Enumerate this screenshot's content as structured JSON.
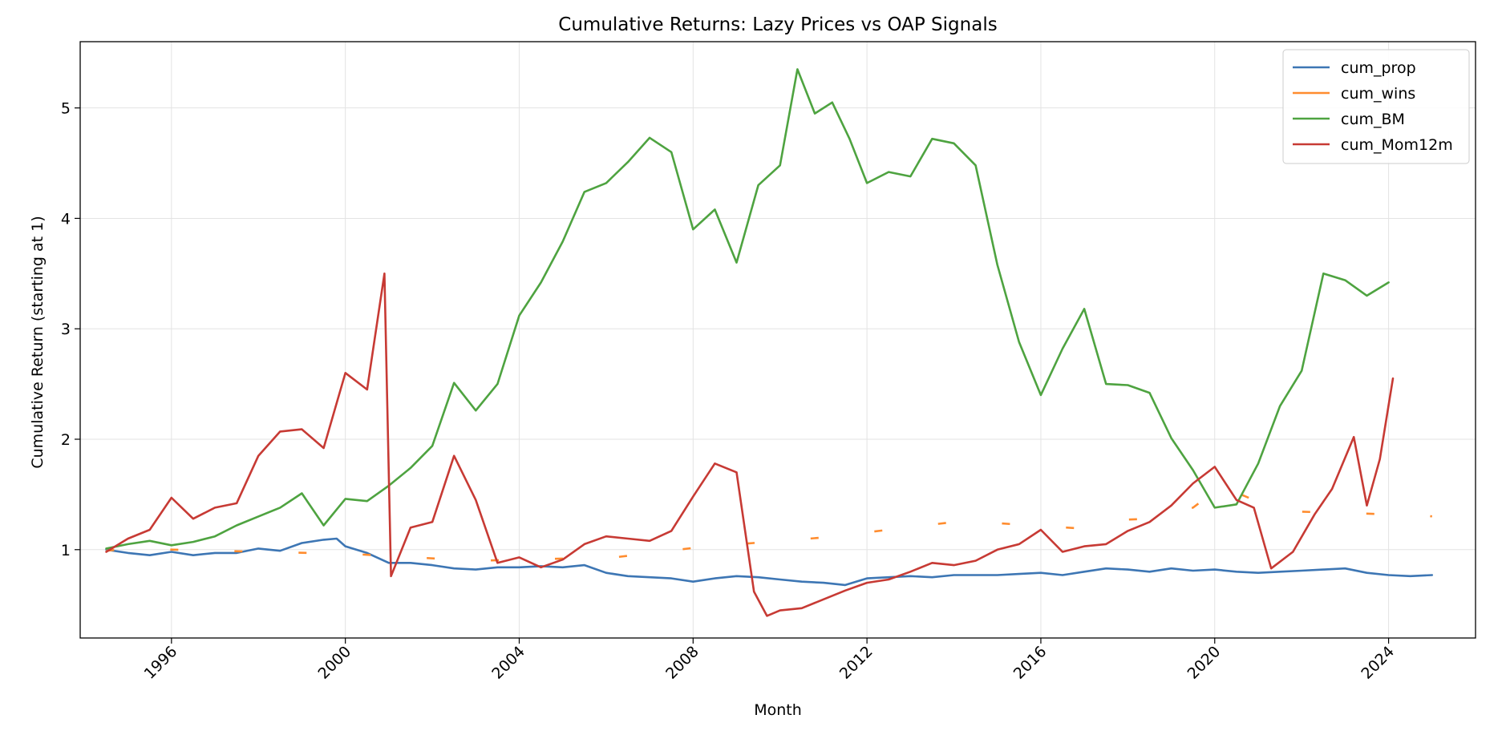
{
  "chart_data": {
    "type": "line",
    "title": "Cumulative Returns: Lazy Prices vs OAP Signals",
    "xlabel": "Month",
    "ylabel": "Cumulative Return (starting at 1)",
    "xlim": [
      1993.9,
      2026.0
    ],
    "ylim": [
      0.2,
      5.6
    ],
    "xticks": [
      1996,
      2000,
      2004,
      2008,
      2012,
      2016,
      2020,
      2024
    ],
    "yticks": [
      1,
      2,
      3,
      4,
      5
    ],
    "grid": true,
    "legend_position": "top-right",
    "series": [
      {
        "name": "cum_prop",
        "color": "#3d76b4",
        "style": "solid",
        "points": [
          [
            1994.5,
            1.0
          ],
          [
            1995.0,
            0.97
          ],
          [
            1995.5,
            0.95
          ],
          [
            1996.0,
            0.98
          ],
          [
            1996.5,
            0.95
          ],
          [
            1997.0,
            0.97
          ],
          [
            1997.5,
            0.97
          ],
          [
            1998.0,
            1.01
          ],
          [
            1998.5,
            0.99
          ],
          [
            1999.0,
            1.06
          ],
          [
            1999.5,
            1.09
          ],
          [
            1999.8,
            1.1
          ],
          [
            2000.0,
            1.03
          ],
          [
            2000.5,
            0.97
          ],
          [
            2001.0,
            0.88
          ],
          [
            2001.5,
            0.88
          ],
          [
            2002.0,
            0.86
          ],
          [
            2002.5,
            0.83
          ],
          [
            2003.0,
            0.82
          ],
          [
            2003.5,
            0.84
          ],
          [
            2004.0,
            0.84
          ],
          [
            2004.5,
            0.85
          ],
          [
            2005.0,
            0.84
          ],
          [
            2005.5,
            0.86
          ],
          [
            2006.0,
            0.79
          ],
          [
            2006.5,
            0.76
          ],
          [
            2007.0,
            0.75
          ],
          [
            2007.5,
            0.74
          ],
          [
            2008.0,
            0.71
          ],
          [
            2008.5,
            0.74
          ],
          [
            2009.0,
            0.76
          ],
          [
            2009.5,
            0.75
          ],
          [
            2010.0,
            0.73
          ],
          [
            2010.5,
            0.71
          ],
          [
            2011.0,
            0.7
          ],
          [
            2011.5,
            0.68
          ],
          [
            2012.0,
            0.74
          ],
          [
            2012.5,
            0.75
          ],
          [
            2013.0,
            0.76
          ],
          [
            2013.5,
            0.75
          ],
          [
            2014.0,
            0.77
          ],
          [
            2014.5,
            0.77
          ],
          [
            2015.0,
            0.77
          ],
          [
            2015.5,
            0.78
          ],
          [
            2016.0,
            0.79
          ],
          [
            2016.5,
            0.77
          ],
          [
            2017.0,
            0.8
          ],
          [
            2017.5,
            0.83
          ],
          [
            2018.0,
            0.82
          ],
          [
            2018.5,
            0.8
          ],
          [
            2019.0,
            0.83
          ],
          [
            2019.5,
            0.81
          ],
          [
            2020.0,
            0.82
          ],
          [
            2020.5,
            0.8
          ],
          [
            2021.0,
            0.79
          ],
          [
            2021.5,
            0.8
          ],
          [
            2022.0,
            0.81
          ],
          [
            2022.5,
            0.82
          ],
          [
            2023.0,
            0.83
          ],
          [
            2023.5,
            0.79
          ],
          [
            2024.0,
            0.77
          ],
          [
            2024.5,
            0.76
          ],
          [
            2025.0,
            0.77
          ]
        ]
      },
      {
        "name": "cum_wins",
        "color": "#ff8c2e",
        "style": "dashed",
        "points": [
          [
            1994.5,
            0.99
          ],
          [
            1995.0,
            1.01
          ],
          [
            2000.2,
            0.96
          ],
          [
            2003.0,
            0.9
          ],
          [
            2006.2,
            0.93
          ],
          [
            2008.1,
            1.02
          ],
          [
            2011.0,
            1.11
          ],
          [
            2014.2,
            1.26
          ],
          [
            2017.0,
            1.19
          ],
          [
            2017.8,
            1.27
          ],
          [
            2018.5,
            1.28
          ],
          [
            2019.5,
            1.38
          ],
          [
            2020.3,
            1.62
          ],
          [
            2020.6,
            1.5
          ],
          [
            2021.5,
            1.35
          ],
          [
            2024.0,
            1.32
          ],
          [
            2024.6,
            1.33
          ],
          [
            2025.0,
            1.3
          ]
        ]
      },
      {
        "name": "cum_BM",
        "color": "#4ea340",
        "style": "solid",
        "points": [
          [
            1994.5,
            1.01
          ],
          [
            1995.0,
            1.05
          ],
          [
            1995.5,
            1.08
          ],
          [
            1996.0,
            1.04
          ],
          [
            1996.5,
            1.07
          ],
          [
            1997.0,
            1.12
          ],
          [
            1997.5,
            1.22
          ],
          [
            1998.0,
            1.3
          ],
          [
            1998.5,
            1.38
          ],
          [
            1999.0,
            1.51
          ],
          [
            1999.5,
            1.22
          ],
          [
            2000.0,
            1.46
          ],
          [
            2000.5,
            1.44
          ],
          [
            2001.0,
            1.58
          ],
          [
            2001.5,
            1.74
          ],
          [
            2002.0,
            1.94
          ],
          [
            2002.5,
            2.51
          ],
          [
            2003.0,
            2.26
          ],
          [
            2003.5,
            2.5
          ],
          [
            2004.0,
            3.12
          ],
          [
            2004.5,
            3.42
          ],
          [
            2005.0,
            3.79
          ],
          [
            2005.5,
            4.24
          ],
          [
            2006.0,
            4.32
          ],
          [
            2006.5,
            4.51
          ],
          [
            2007.0,
            4.73
          ],
          [
            2007.5,
            4.6
          ],
          [
            2008.0,
            3.9
          ],
          [
            2008.5,
            4.08
          ],
          [
            2009.0,
            3.6
          ],
          [
            2009.5,
            4.3
          ],
          [
            2010.0,
            4.48
          ],
          [
            2010.4,
            5.35
          ],
          [
            2010.8,
            4.95
          ],
          [
            2011.2,
            5.05
          ],
          [
            2011.6,
            4.72
          ],
          [
            2012.0,
            4.32
          ],
          [
            2012.5,
            4.42
          ],
          [
            2013.0,
            4.38
          ],
          [
            2013.5,
            4.72
          ],
          [
            2014.0,
            4.68
          ],
          [
            2014.5,
            4.48
          ],
          [
            2015.0,
            3.58
          ],
          [
            2015.5,
            2.88
          ],
          [
            2016.0,
            2.4
          ],
          [
            2016.5,
            2.82
          ],
          [
            2017.0,
            3.18
          ],
          [
            2017.5,
            2.5
          ],
          [
            2018.0,
            2.49
          ],
          [
            2018.5,
            2.42
          ],
          [
            2019.0,
            2.01
          ],
          [
            2019.5,
            1.72
          ],
          [
            2020.0,
            1.38
          ],
          [
            2020.5,
            1.41
          ],
          [
            2021.0,
            1.78
          ],
          [
            2021.5,
            2.3
          ],
          [
            2022.0,
            2.62
          ],
          [
            2022.5,
            3.5
          ],
          [
            2023.0,
            3.44
          ],
          [
            2023.5,
            3.3
          ],
          [
            2024.0,
            3.42
          ]
        ]
      },
      {
        "name": "cum_Mom12m",
        "color": "#c73a34",
        "style": "solid",
        "points": [
          [
            1994.5,
            0.98
          ],
          [
            1995.0,
            1.1
          ],
          [
            1995.5,
            1.18
          ],
          [
            1996.0,
            1.47
          ],
          [
            1996.5,
            1.28
          ],
          [
            1997.0,
            1.38
          ],
          [
            1997.5,
            1.42
          ],
          [
            1998.0,
            1.85
          ],
          [
            1998.5,
            2.07
          ],
          [
            1999.0,
            2.09
          ],
          [
            1999.5,
            1.92
          ],
          [
            2000.0,
            2.6
          ],
          [
            2000.5,
            2.45
          ],
          [
            2000.9,
            3.5
          ],
          [
            2001.05,
            0.76
          ],
          [
            2001.5,
            1.2
          ],
          [
            2002.0,
            1.25
          ],
          [
            2002.5,
            1.85
          ],
          [
            2003.0,
            1.45
          ],
          [
            2003.5,
            0.88
          ],
          [
            2004.0,
            0.93
          ],
          [
            2004.5,
            0.84
          ],
          [
            2005.0,
            0.91
          ],
          [
            2005.5,
            1.05
          ],
          [
            2006.0,
            1.12
          ],
          [
            2006.5,
            1.1
          ],
          [
            2007.0,
            1.08
          ],
          [
            2007.5,
            1.17
          ],
          [
            2008.0,
            1.48
          ],
          [
            2008.5,
            1.78
          ],
          [
            2009.0,
            1.7
          ],
          [
            2009.4,
            0.62
          ],
          [
            2009.7,
            0.4
          ],
          [
            2010.0,
            0.45
          ],
          [
            2010.5,
            0.47
          ],
          [
            2011.0,
            0.55
          ],
          [
            2011.5,
            0.63
          ],
          [
            2012.0,
            0.7
          ],
          [
            2012.5,
            0.73
          ],
          [
            2013.0,
            0.8
          ],
          [
            2013.5,
            0.88
          ],
          [
            2014.0,
            0.86
          ],
          [
            2014.5,
            0.9
          ],
          [
            2015.0,
            1.0
          ],
          [
            2015.5,
            1.05
          ],
          [
            2016.0,
            1.18
          ],
          [
            2016.5,
            0.98
          ],
          [
            2017.0,
            1.03
          ],
          [
            2017.5,
            1.05
          ],
          [
            2018.0,
            1.17
          ],
          [
            2018.5,
            1.25
          ],
          [
            2019.0,
            1.4
          ],
          [
            2019.5,
            1.6
          ],
          [
            2020.0,
            1.75
          ],
          [
            2020.5,
            1.45
          ],
          [
            2020.9,
            1.38
          ],
          [
            2021.3,
            0.83
          ],
          [
            2021.8,
            0.98
          ],
          [
            2022.3,
            1.32
          ],
          [
            2022.7,
            1.55
          ],
          [
            2023.2,
            2.02
          ],
          [
            2023.5,
            1.4
          ],
          [
            2023.8,
            1.82
          ],
          [
            2024.1,
            2.55
          ]
        ]
      }
    ]
  }
}
